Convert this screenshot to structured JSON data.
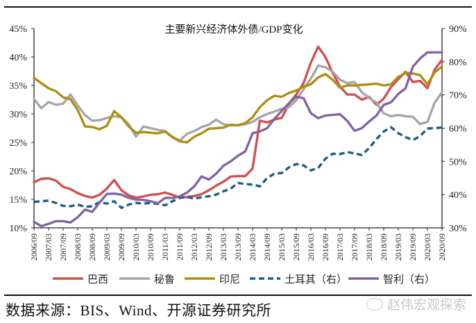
{
  "chart_data": {
    "type": "line",
    "title": "主要新兴经济体外债/GDP变化",
    "xlabel": "",
    "ylabel_left": "",
    "ylabel_right": "",
    "x": [
      "2006/09",
      "2006/12",
      "2007/03",
      "2007/06",
      "2007/09",
      "2007/12",
      "2008/03",
      "2008/06",
      "2008/09",
      "2008/12",
      "2009/03",
      "2009/06",
      "2009/09",
      "2009/12",
      "2010/03",
      "2010/06",
      "2010/09",
      "2010/12",
      "2011/03",
      "2011/06",
      "2011/09",
      "2011/12",
      "2012/03",
      "2012/06",
      "2012/09",
      "2012/12",
      "2013/03",
      "2013/06",
      "2013/09",
      "2013/12",
      "2014/03",
      "2014/06",
      "2014/09",
      "2014/12",
      "2015/03",
      "2015/06",
      "2015/09",
      "2015/12",
      "2016/03",
      "2016/06",
      "2016/09",
      "2016/12",
      "2017/03",
      "2017/06",
      "2017/09",
      "2017/12",
      "2018/03",
      "2018/06",
      "2018/09",
      "2018/12",
      "2019/03",
      "2019/06",
      "2019/09",
      "2019/12",
      "2020/03",
      "2020/06",
      "2020/09"
    ],
    "x_tick_labels": [
      "2006/09",
      "2007/03",
      "2007/09",
      "2008/03",
      "2008/09",
      "2009/03",
      "2009/09",
      "2010/03",
      "2010/09",
      "2011/03",
      "2011/09",
      "2012/03",
      "2012/09",
      "2013/03",
      "2013/09",
      "2014/03",
      "2014/09",
      "2015/03",
      "2015/09",
      "2016/03",
      "2016/09",
      "2017/03",
      "2017/09",
      "2018/03",
      "2018/09",
      "2019/03",
      "2019/09",
      "2020/03",
      "2020/09"
    ],
    "y_left": {
      "ylim": [
        10,
        45
      ],
      "ticks": [
        10,
        15,
        20,
        25,
        30,
        35,
        40,
        45
      ],
      "tick_labels": [
        "10%",
        "15%",
        "20%",
        "25%",
        "30%",
        "35%",
        "40%",
        "45%"
      ]
    },
    "y_right": {
      "ylim": [
        30,
        90
      ],
      "ticks": [
        30,
        40,
        50,
        60,
        70,
        80,
        90
      ],
      "tick_labels": [
        "30%",
        "40%",
        "50%",
        "60%",
        "70%",
        "80%",
        "90%"
      ]
    },
    "grid": false,
    "legend_position": "bottom",
    "series": [
      {
        "name": "巴西",
        "axis": "left",
        "color": "#d0504f",
        "dash": false,
        "values": [
          18.0,
          18.6,
          18.7,
          18.3,
          17.2,
          16.8,
          16.1,
          15.6,
          15.3,
          15.8,
          16.9,
          18.4,
          16.6,
          15.7,
          15.3,
          15.5,
          15.8,
          15.9,
          16.2,
          15.8,
          15.3,
          15.4,
          15.6,
          15.9,
          16.6,
          17.4,
          18.1,
          19.0,
          19.1,
          19.1,
          20.4,
          28.8,
          28.5,
          29.0,
          29.3,
          31.8,
          33.4,
          35.4,
          39.0,
          41.8,
          40.0,
          37.2,
          34.8,
          33.4,
          33.4,
          32.5,
          33.0,
          31.6,
          32.7,
          34.7,
          36.1,
          37.4,
          35.6,
          35.8,
          34.5,
          37.8,
          39.5
        ]
      },
      {
        "name": "秘鲁",
        "axis": "left",
        "color": "#a6a6a6",
        "dash": false,
        "values": [
          32.6,
          31.0,
          32.1,
          31.6,
          31.8,
          33.4,
          31.5,
          29.8,
          28.8,
          28.9,
          29.3,
          29.6,
          29.4,
          28.2,
          26.0,
          27.8,
          27.5,
          27.2,
          27.0,
          26.0,
          25.3,
          26.5,
          27.0,
          27.7,
          28.1,
          29.0,
          28.2,
          28.0,
          28.0,
          28.2,
          28.6,
          29.4,
          30.0,
          30.4,
          30.9,
          31.2,
          32.4,
          34.3,
          36.2,
          38.5,
          38.2,
          37.4,
          36.0,
          35.4,
          35.6,
          33.8,
          32.8,
          32.0,
          30.1,
          29.6,
          29.8,
          29.6,
          29.5,
          28.2,
          28.6,
          32.0,
          33.8
        ]
      },
      {
        "name": "印尼",
        "axis": "left",
        "color": "#b08d13",
        "dash": false,
        "values": [
          36.3,
          35.4,
          34.5,
          34.0,
          32.9,
          32.6,
          30.7,
          27.8,
          27.7,
          27.3,
          27.9,
          30.5,
          29.4,
          27.8,
          26.7,
          26.8,
          26.7,
          26.6,
          26.9,
          25.9,
          25.2,
          25.0,
          26.0,
          26.6,
          27.4,
          27.5,
          27.6,
          28.1,
          28.0,
          28.4,
          29.4,
          31.2,
          32.4,
          33.2,
          33.0,
          33.7,
          34.1,
          34.8,
          35.2,
          36.4,
          37.0,
          36.0,
          34.6,
          35.0,
          35.0,
          35.1,
          35.2,
          35.3,
          35.0,
          35.2,
          36.5,
          37.2,
          37.1,
          36.8,
          35.2,
          37.3,
          38.3
        ]
      },
      {
        "name": "土耳其（右）",
        "axis": "right",
        "color": "#1a5f86",
        "dash": true,
        "values": [
          37.8,
          38.0,
          38.2,
          37.5,
          36.6,
          36.5,
          37.0,
          36.3,
          36.5,
          37.8,
          37.3,
          38.0,
          36.0,
          37.0,
          37.5,
          37.3,
          37.5,
          37.2,
          36.8,
          38.0,
          39.0,
          39.3,
          38.8,
          39.2,
          39.5,
          40.0,
          41.0,
          41.8,
          43.5,
          43.2,
          43.0,
          42.5,
          45.0,
          46.3,
          46.5,
          48.2,
          49.2,
          48.8,
          47.3,
          48.0,
          50.8,
          52.3,
          52.2,
          52.8,
          52.4,
          51.9,
          54.0,
          56.7,
          59.0,
          60.3,
          58.5,
          57.3,
          56.4,
          57.6,
          59.9,
          60.0,
          60.2
        ]
      },
      {
        "name": "智利（右）",
        "axis": "right",
        "color": "#8064a2",
        "dash": false,
        "values": [
          31.8,
          30.5,
          31.2,
          32.0,
          32.0,
          31.6,
          33.2,
          35.5,
          34.8,
          37.6,
          40.2,
          40.3,
          40.0,
          39.0,
          38.5,
          38.4,
          38.0,
          37.4,
          39.0,
          39.0,
          39.5,
          40.6,
          42.5,
          45.5,
          44.5,
          46.3,
          48.7,
          50.0,
          51.7,
          53.0,
          58.5,
          59.0,
          60.0,
          62.8,
          65.2,
          67.5,
          69.5,
          69.0,
          64.5,
          63.0,
          63.8,
          64.0,
          64.2,
          62.2,
          59.2,
          60.0,
          62.0,
          63.8,
          67.0,
          67.8,
          70.3,
          72.0,
          78.5,
          81.0,
          82.8,
          82.8,
          82.8
        ]
      }
    ]
  },
  "source_text": "数据来源：BIS、Wind、开源证券研究所",
  "watermark_text": "赵伟宏观探索"
}
